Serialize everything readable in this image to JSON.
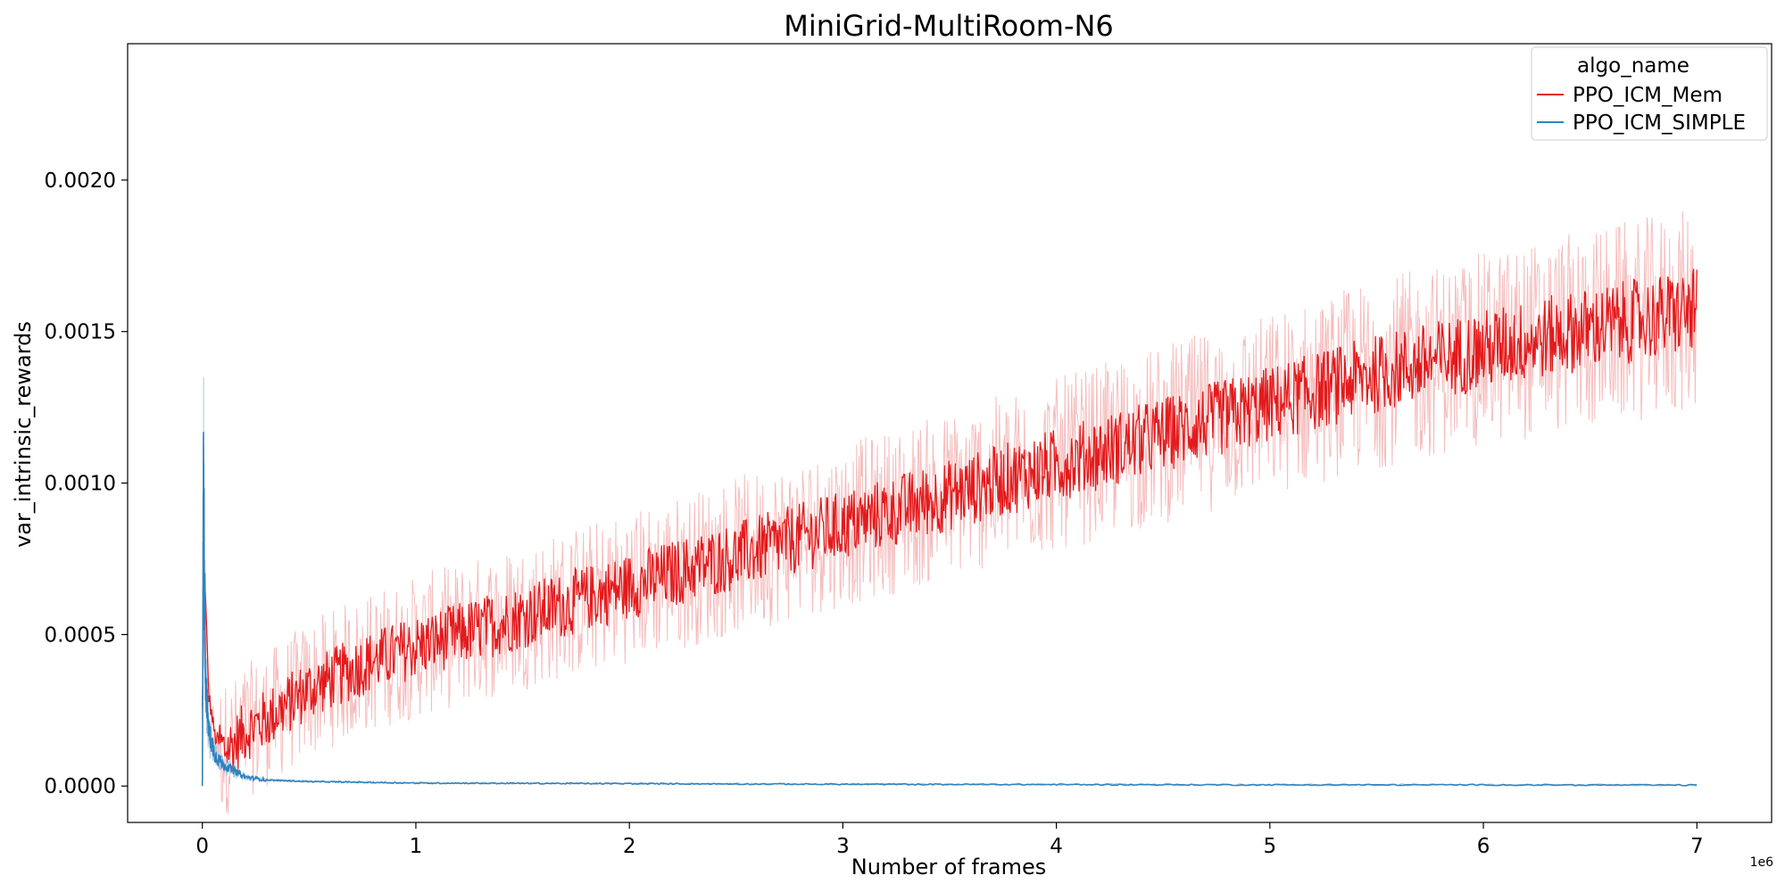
{
  "chart_data": {
    "type": "line",
    "title": "MiniGrid-MultiRoom-N6",
    "xlabel": "Number of frames",
    "ylabel": "var_intrinsic_rewards",
    "x_offset_label": "1e6",
    "xlim": [
      -0.35,
      7.35
    ],
    "ylim": [
      -0.00012,
      0.00245
    ],
    "x_ticks": [
      0,
      1,
      2,
      3,
      4,
      5,
      6,
      7
    ],
    "x_tick_labels": [
      "0",
      "1",
      "2",
      "3",
      "4",
      "5",
      "6",
      "7"
    ],
    "y_ticks": [
      0.0,
      0.0005,
      0.001,
      0.0015,
      0.002
    ],
    "y_tick_labels": [
      "0.0000",
      "0.0005",
      "0.0010",
      "0.0015",
      "0.0020"
    ],
    "grid": false,
    "legend": {
      "title": "algo_name",
      "placement": "top-right",
      "entries": [
        "PPO_ICM_Mem",
        "PPO_ICM_SIMPLE"
      ]
    },
    "series": [
      {
        "name": "PPO_ICM_Mem",
        "color": "#e31a1c",
        "band_color": "#f4b6b6",
        "x": [
          0.0,
          0.01,
          0.03,
          0.06,
          0.1,
          0.15,
          0.2,
          0.3,
          0.5,
          0.75,
          1.0,
          1.5,
          2.0,
          2.5,
          3.0,
          3.5,
          4.0,
          4.5,
          5.0,
          5.5,
          6.0,
          6.5,
          7.0
        ],
        "y": [
          0.00025,
          0.00072,
          0.0003,
          0.00016,
          0.00012,
          0.00014,
          0.00018,
          0.00022,
          0.00032,
          0.0004,
          0.00046,
          0.00056,
          0.00066,
          0.00076,
          0.00086,
          0.00096,
          0.00106,
          0.00116,
          0.00126,
          0.00136,
          0.00144,
          0.00151,
          0.00157
        ]
      },
      {
        "name": "PPO_ICM_SIMPLE",
        "color": "#3182bd",
        "band_color": "#a6c8e6",
        "x": [
          0.0,
          0.005,
          0.015,
          0.03,
          0.06,
          0.1,
          0.15,
          0.2,
          0.3,
          0.5,
          1.0,
          2.0,
          3.0,
          4.0,
          5.0,
          6.0,
          7.0
        ],
        "y": [
          0.0,
          0.00102,
          0.00035,
          0.00018,
          0.0001,
          7e-05,
          5e-05,
          3e-05,
          2e-05,
          1.5e-05,
          1e-05,
          8e-06,
          6e-06,
          5e-06,
          4e-06,
          4e-06,
          3e-06
        ]
      }
    ]
  }
}
